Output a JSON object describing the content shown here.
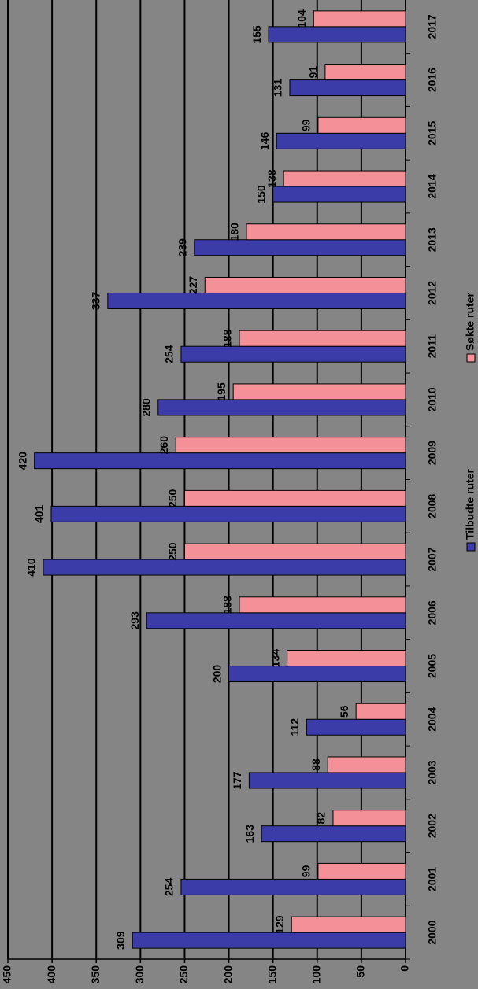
{
  "chart_data": {
    "type": "bar",
    "categories": [
      "2000",
      "2001",
      "2002",
      "2003",
      "2004",
      "2005",
      "2006",
      "2007",
      "2008",
      "2009",
      "2010",
      "2011",
      "2012",
      "2013",
      "2014",
      "2015",
      "2016",
      "2017"
    ],
    "series": [
      {
        "name": "Tilbudte ruter",
        "color": "#3c3ca8",
        "values": [
          309,
          254,
          163,
          177,
          112,
          200,
          293,
          410,
          401,
          420,
          280,
          254,
          337,
          239,
          150,
          146,
          131,
          155
        ]
      },
      {
        "name": "Søkte ruter",
        "color": "#f49098",
        "values": [
          129,
          99,
          82,
          88,
          56,
          134,
          188,
          250,
          250,
          260,
          195,
          188,
          227,
          180,
          138,
          99,
          91,
          104
        ]
      }
    ],
    "ylim": [
      0,
      450
    ],
    "yticks": [
      0,
      50,
      100,
      150,
      200,
      250,
      300,
      350,
      400,
      450
    ],
    "grid": true,
    "legend": "bottom"
  }
}
